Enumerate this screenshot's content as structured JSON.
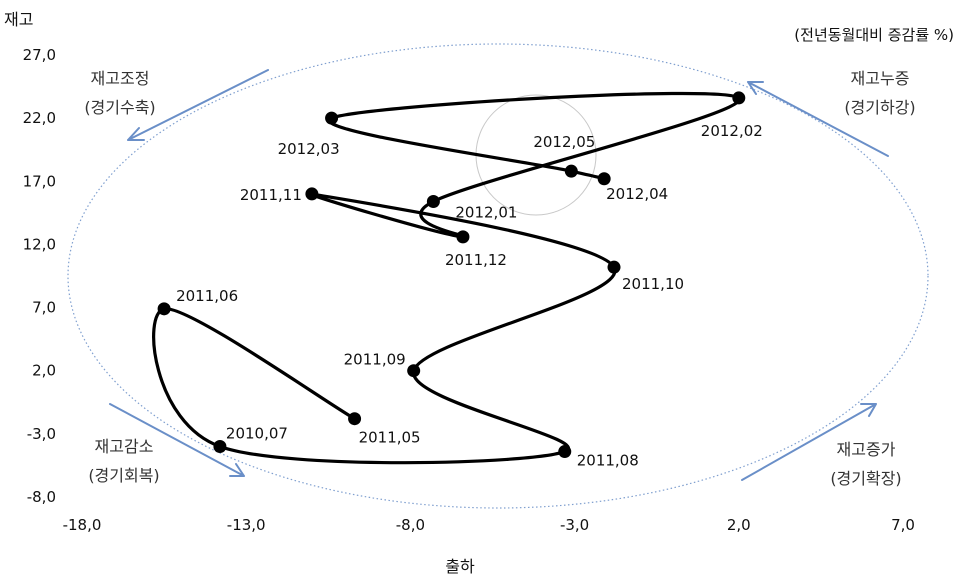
{
  "chart_data": {
    "type": "line",
    "ylabel": "재고",
    "xlabel": "출하",
    "unit_note": "(전년동월대비 증감률 %)",
    "xlim": [
      -18.0,
      7.0
    ],
    "ylim": [
      -8.0,
      27.0
    ],
    "xticks": [
      "-18,0",
      "-13,0",
      "-8,0",
      "-3,0",
      "2,0",
      "7,0"
    ],
    "xtick_values": [
      -18,
      -13,
      -8,
      -3,
      2,
      7
    ],
    "yticks": [
      "27,0",
      "22,0",
      "17,0",
      "12,0",
      "7,0",
      "2,0",
      "-3,0",
      "-8,0"
    ],
    "ytick_values": [
      27,
      22,
      17,
      12,
      7,
      2,
      -3,
      -8
    ],
    "series": [
      {
        "points": [
          {
            "label": "2011,05",
            "x": -9.7,
            "y": -1.8
          },
          {
            "label": "2011,06",
            "x": -15.5,
            "y": 6.9
          },
          {
            "label": "2010,07",
            "x": -13.8,
            "y": -4.0
          },
          {
            "label": "2011,08",
            "x": -3.3,
            "y": -4.4
          },
          {
            "label": "2011,09",
            "x": -7.9,
            "y": 2.0
          },
          {
            "label": "2011,10",
            "x": -1.8,
            "y": 10.2
          },
          {
            "label": "2011,11",
            "x": -11.0,
            "y": 16.0
          },
          {
            "label": "2011,12",
            "x": -6.4,
            "y": 12.6
          },
          {
            "label": "2012,01",
            "x": -7.3,
            "y": 15.4
          },
          {
            "label": "2012,02",
            "x": 2.0,
            "y": 23.6
          },
          {
            "label": "2012,03",
            "x": -10.4,
            "y": 22.0
          },
          {
            "label": "2012,05",
            "x": -3.1,
            "y": 17.8
          },
          {
            "label": "2012,04",
            "x": -2.1,
            "y": 17.2
          }
        ]
      }
    ],
    "annotations": [
      {
        "line1": "재고조정",
        "line2": "(경기수축)"
      },
      {
        "line1": "재고누증",
        "line2": "(경기하강)"
      },
      {
        "line1": "재고감소",
        "line2": "(경기회복)"
      },
      {
        "line1": "재고증가",
        "line2": "(경기확장)"
      }
    ],
    "colors": {
      "line": "#000000",
      "ellipse": "#7f9fcf",
      "arrow": "#6a8fc8",
      "highlight_circle": "#c8c8c8"
    }
  }
}
